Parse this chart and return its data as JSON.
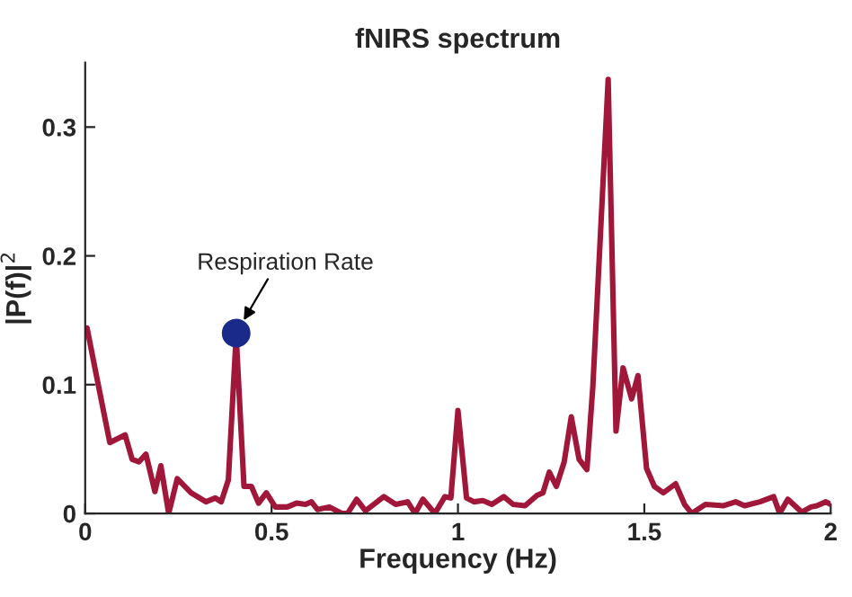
{
  "chart_data": {
    "type": "line",
    "title": "fNIRS spectrum",
    "xlabel": "Frequency (Hz)",
    "ylabel": "|P(f)|$^{2}$",
    "xlim": [
      0,
      2
    ],
    "xticks": [
      0,
      0.5,
      1,
      1.5,
      2
    ],
    "ylim": [
      0,
      0.35
    ],
    "yticks": [
      0,
      0.1,
      0.2,
      0.3
    ],
    "grid": false,
    "legend": false,
    "series": [
      {
        "color": "#a0173a",
        "marker": "none",
        "line_style": "solid",
        "x": [
          0.005,
          0.026,
          0.066,
          0.107,
          0.126,
          0.144,
          0.163,
          0.187,
          0.203,
          0.224,
          0.247,
          0.284,
          0.324,
          0.349,
          0.365,
          0.384,
          0.405,
          0.426,
          0.446,
          0.465,
          0.486,
          0.51,
          0.542,
          0.567,
          0.591,
          0.607,
          0.623,
          0.655,
          0.688,
          0.704,
          0.728,
          0.752,
          0.801,
          0.833,
          0.865,
          0.885,
          0.906,
          0.938,
          0.965,
          0.981,
          1.0,
          1.023,
          1.043,
          1.067,
          1.091,
          1.123,
          1.148,
          1.18,
          1.212,
          1.228,
          1.245,
          1.264,
          1.285,
          1.304,
          1.325,
          1.346,
          1.362,
          1.403,
          1.424,
          1.443,
          1.466,
          1.483,
          1.506,
          1.527,
          1.551,
          1.584,
          1.608,
          1.627,
          1.664,
          1.713,
          1.745,
          1.769,
          1.81,
          1.847,
          1.863,
          1.885,
          1.922,
          1.947,
          1.963,
          1.987,
          2.0
        ],
        "values": [
          0.144,
          0.113,
          0.055,
          0.061,
          0.042,
          0.04,
          0.046,
          0.017,
          0.037,
          0.0,
          0.027,
          0.016,
          0.009,
          0.012,
          0.009,
          0.026,
          0.138,
          0.021,
          0.021,
          0.008,
          0.016,
          0.005,
          0.005,
          0.008,
          0.007,
          0.009,
          0.003,
          0.005,
          0.0,
          0.0,
          0.011,
          0.002,
          0.013,
          0.007,
          0.009,
          0.0,
          0.011,
          0.0,
          0.013,
          0.012,
          0.08,
          0.012,
          0.009,
          0.01,
          0.007,
          0.013,
          0.007,
          0.006,
          0.014,
          0.016,
          0.032,
          0.021,
          0.04,
          0.075,
          0.042,
          0.034,
          0.099,
          0.337,
          0.064,
          0.113,
          0.089,
          0.107,
          0.035,
          0.021,
          0.016,
          0.023,
          0.007,
          0.0,
          0.007,
          0.006,
          0.009,
          0.006,
          0.009,
          0.013,
          0.0,
          0.011,
          0.001,
          0.005,
          0.006,
          0.009,
          0.007
        ]
      },
      {
        "type": "scatter",
        "color": "#1a2a8a",
        "marker": "circle",
        "x": [
          0.405
        ],
        "values": [
          0.14
        ]
      }
    ],
    "annotations": [
      "Respiration Rate"
    ]
  }
}
